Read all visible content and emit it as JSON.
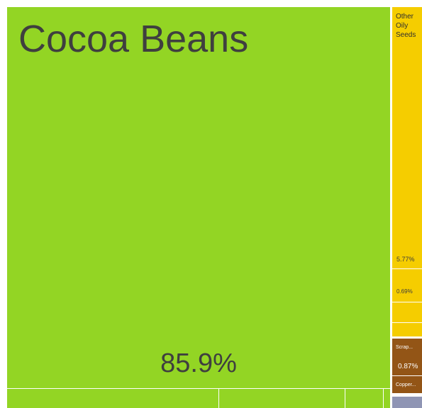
{
  "chart_data": {
    "type": "treemap",
    "items": [
      {
        "name": "Cocoa Beans",
        "value": 85.9,
        "color": "#93d524",
        "label": "Cocoa Beans",
        "percent": "85.9%"
      },
      {
        "name": "Other Oily Seeds",
        "value": 5.77,
        "color": "#f5cd00",
        "label": "Other Oily Seeds",
        "percent": "5.77%"
      },
      {
        "name": "",
        "value": 0.69,
        "color": "#f5cd00",
        "label": "",
        "percent": "0.69%"
      },
      {
        "name": "Scrap...",
        "value": 0.87,
        "color": "#935516",
        "label": "Scrap...",
        "percent": "0.87%"
      },
      {
        "name": "Copper...",
        "value": 0.4,
        "color": "#935516",
        "label": "Copper...",
        "percent": ""
      }
    ],
    "color_groups": {
      "agriculture": "#93d524",
      "oils": "#f5cd00",
      "metals": "#935516",
      "misc": "#8f95b4"
    }
  },
  "labels": {
    "cocoa_title": "Cocoa Beans",
    "cocoa_percent": "85.9%",
    "oily_seeds_title": "Other Oily Seeds",
    "oily_seeds_percent": "5.77%",
    "small_yellow_percent": "0.69%",
    "scrap_label": "Scrap...",
    "scrap_percent": "0.87%",
    "copper_label": "Copper..."
  }
}
